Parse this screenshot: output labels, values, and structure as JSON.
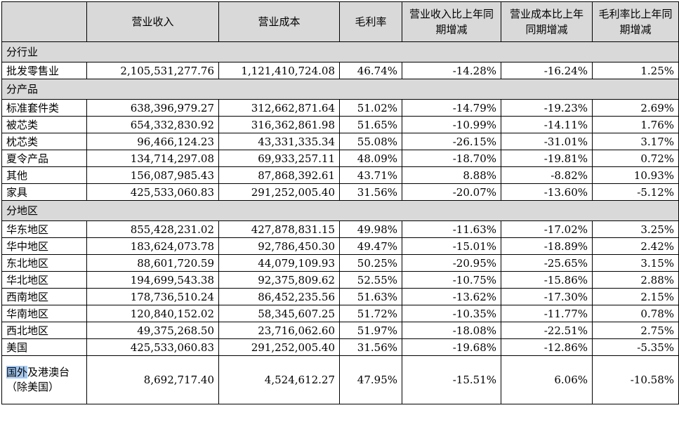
{
  "headers": [
    "",
    "营业收入",
    "营业成本",
    "毛利率",
    "营业收入比上年同期增减",
    "营业成本比上年同期增减",
    "毛利率比上年同期增减"
  ],
  "sections": [
    {
      "title": "分行业",
      "rows": [
        [
          "批发零售业",
          "2,105,531,277.76",
          "1,121,410,724.08",
          "46.74%",
          "-14.28%",
          "-16.24%",
          "1.25%"
        ]
      ]
    },
    {
      "title": "分产品",
      "rows": [
        [
          "标准套件类",
          "638,396,979.27",
          "312,662,871.64",
          "51.02%",
          "-14.79%",
          "-19.23%",
          "2.69%"
        ],
        [
          "被芯类",
          "654,332,830.92",
          "316,362,861.98",
          "51.65%",
          "-10.99%",
          "-14.11%",
          "1.76%"
        ],
        [
          "枕芯类",
          "96,466,124.23",
          "43,331,335.34",
          "55.08%",
          "-26.15%",
          "-31.01%",
          "3.17%"
        ],
        [
          "夏令产品",
          "134,714,297.08",
          "69,933,257.11",
          "48.09%",
          "-18.70%",
          "-19.81%",
          "0.72%"
        ],
        [
          "其他",
          "156,087,985.43",
          "87,868,392.61",
          "43.71%",
          "8.88%",
          "-8.82%",
          "10.93%"
        ],
        [
          "家具",
          "425,533,060.83",
          "291,252,005.40",
          "31.56%",
          "-20.07%",
          "-13.60%",
          "-5.12%"
        ]
      ]
    },
    {
      "title": "分地区",
      "rows": [
        [
          "华东地区",
          "855,428,231.02",
          "427,878,831.15",
          "49.98%",
          "-11.63%",
          "-17.02%",
          "3.25%"
        ],
        [
          "华中地区",
          "183,624,073.78",
          "92,786,450.30",
          "49.47%",
          "-15.01%",
          "-18.89%",
          "2.42%"
        ],
        [
          "东北地区",
          "88,601,720.59",
          "44,079,109.93",
          "50.25%",
          "-20.95%",
          "-25.65%",
          "3.15%"
        ],
        [
          "华北地区",
          "194,699,543.38",
          "92,375,809.62",
          "52.55%",
          "-10.75%",
          "-15.86%",
          "2.88%"
        ],
        [
          "西南地区",
          "178,736,510.24",
          "86,452,235.56",
          "51.63%",
          "-13.62%",
          "-17.30%",
          "2.15%"
        ],
        [
          "华南地区",
          "120,840,152.02",
          "58,345,607.25",
          "51.72%",
          "-10.35%",
          "-11.77%",
          "0.78%"
        ],
        [
          "西北地区",
          "49,375,268.50",
          "23,716,062.60",
          "51.97%",
          "-18.08%",
          "-22.51%",
          "2.75%"
        ],
        [
          "美国",
          "425,533,060.83",
          "291,252,005.40",
          "31.56%",
          "-19.68%",
          "-12.86%",
          "-5.35%"
        ]
      ],
      "last_row": {
        "label_highlight": "国外",
        "label_rest": "及港澳台（除美国）",
        "values": [
          "8,692,717.40",
          "4,524,612.27",
          "47.95%",
          "-15.51%",
          "6.06%",
          "-10.58%"
        ]
      }
    }
  ]
}
